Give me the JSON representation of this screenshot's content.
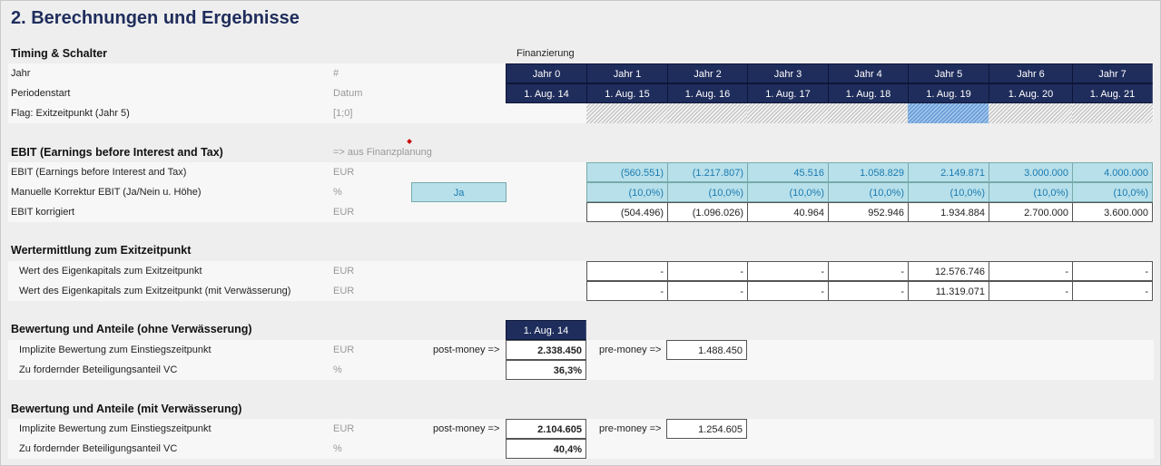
{
  "title": "2. Berechnungen und Ergebnisse",
  "timing": {
    "heading": "Timing & Schalter",
    "financing_label": "Finanzierung",
    "rows": [
      {
        "label": "Jahr",
        "unit": "#"
      },
      {
        "label": "Periodenstart",
        "unit": "Datum"
      },
      {
        "label": "Flag: Exitzeitpunkt (Jahr 5)",
        "unit": "[1;0]"
      }
    ],
    "years": [
      "Jahr 0",
      "Jahr 1",
      "Jahr 2",
      "Jahr 3",
      "Jahr 4",
      "Jahr 5",
      "Jahr 6",
      "Jahr 7"
    ],
    "dates": [
      "1. Aug. 14",
      "1. Aug. 15",
      "1. Aug. 16",
      "1. Aug. 17",
      "1. Aug. 18",
      "1. Aug. 19",
      "1. Aug. 20",
      "1. Aug. 21"
    ],
    "exit_flag": [
      0,
      0,
      0,
      0,
      0,
      1,
      0,
      0
    ]
  },
  "ebit": {
    "heading": "EBIT (Earnings before Interest and Tax)",
    "source_note": "=> aus Finanzplanung",
    "rows": [
      {
        "label": "EBIT (Earnings before Interest and Tax)",
        "unit": "EUR",
        "values": [
          "(560.551)",
          "(1.217.807)",
          "45.516",
          "1.058.829",
          "2.149.871",
          "3.000.000",
          "4.000.000"
        ]
      },
      {
        "label": "Manuelle Korrektur EBIT (Ja/Nein u. Höhe)",
        "unit": "%",
        "switch": "Ja",
        "values": [
          "(10,0%)",
          "(10,0%)",
          "(10,0%)",
          "(10,0%)",
          "(10,0%)",
          "(10,0%)",
          "(10,0%)"
        ]
      },
      {
        "label": "EBIT korrigiert",
        "unit": "EUR",
        "values": [
          "(504.496)",
          "(1.096.026)",
          "40.964",
          "952.946",
          "1.934.884",
          "2.700.000",
          "3.600.000"
        ]
      }
    ]
  },
  "exit": {
    "heading": "Wertermittlung zum Exitzeitpunkt",
    "rows": [
      {
        "label": "Wert des Eigenkapitals zum Exitzeitpunkt",
        "unit": "EUR",
        "values": [
          "-",
          "-",
          "-",
          "-",
          "12.576.746",
          "-",
          "-"
        ]
      },
      {
        "label": "Wert des Eigenkapitals zum Exitzeitpunkt (mit Verwässerung)",
        "unit": "EUR",
        "values": [
          "-",
          "-",
          "-",
          "-",
          "11.319.071",
          "-",
          "-"
        ]
      }
    ]
  },
  "val1": {
    "heading": "Bewertung und Anteile (ohne Verwässerung)",
    "date": "1. Aug. 14",
    "rows": [
      {
        "label": "Implizite Bewertung zum Einstiegszeitpunkt",
        "unit": "EUR",
        "post_label": "post-money =>",
        "post": "2.338.450",
        "pre_label": "pre-money =>",
        "pre": "1.488.450"
      },
      {
        "label": "Zu fordernder Beteiligungsanteil VC",
        "unit": "%",
        "value": "36,3%"
      }
    ]
  },
  "val2": {
    "heading": "Bewertung und Anteile (mit Verwässerung)",
    "rows": [
      {
        "label": "Implizite Bewertung zum Einstiegszeitpunkt",
        "unit": "EUR",
        "post_label": "post-money =>",
        "post": "2.104.605",
        "pre_label": "pre-money =>",
        "pre": "1.254.605"
      },
      {
        "label": "Zu fordernder Beteiligungsanteil VC",
        "unit": "%",
        "value": "40,4%"
      }
    ]
  }
}
